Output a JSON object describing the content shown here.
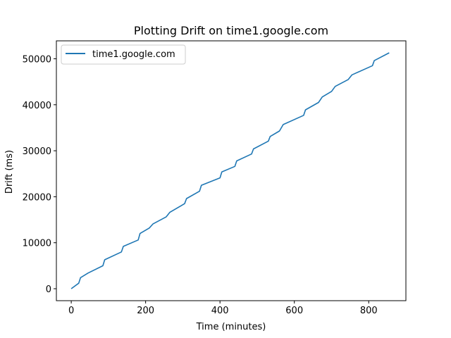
{
  "chart_data": {
    "type": "line",
    "title": "Plotting Drift on time1.google.com",
    "xlabel": "Time (minutes)",
    "ylabel": "Drift (ms)",
    "xlim": [
      -40,
      900
    ],
    "ylim": [
      -2600,
      53900
    ],
    "xticks": [
      0,
      200,
      400,
      600,
      800
    ],
    "yticks": [
      0,
      10000,
      20000,
      30000,
      40000,
      50000
    ],
    "grid": false,
    "legend_position": "upper-left",
    "series": [
      {
        "name": "time1.google.com",
        "color": "#1f77b4",
        "x": [
          0,
          20,
          25,
          45,
          85,
          90,
          135,
          140,
          180,
          185,
          210,
          220,
          255,
          265,
          305,
          310,
          345,
          350,
          400,
          405,
          440,
          445,
          485,
          490,
          530,
          535,
          560,
          570,
          625,
          630,
          665,
          675,
          700,
          710,
          745,
          755,
          810,
          815,
          855
        ],
        "y": [
          0,
          1200,
          2400,
          3400,
          5000,
          6300,
          8000,
          9200,
          10600,
          12000,
          13200,
          14100,
          15600,
          16600,
          18500,
          19600,
          21200,
          22500,
          24100,
          25400,
          26600,
          27800,
          29300,
          30400,
          32100,
          33100,
          34300,
          35700,
          37700,
          38900,
          40500,
          41700,
          42900,
          44000,
          45500,
          46500,
          48500,
          49600,
          51300
        ]
      }
    ]
  }
}
